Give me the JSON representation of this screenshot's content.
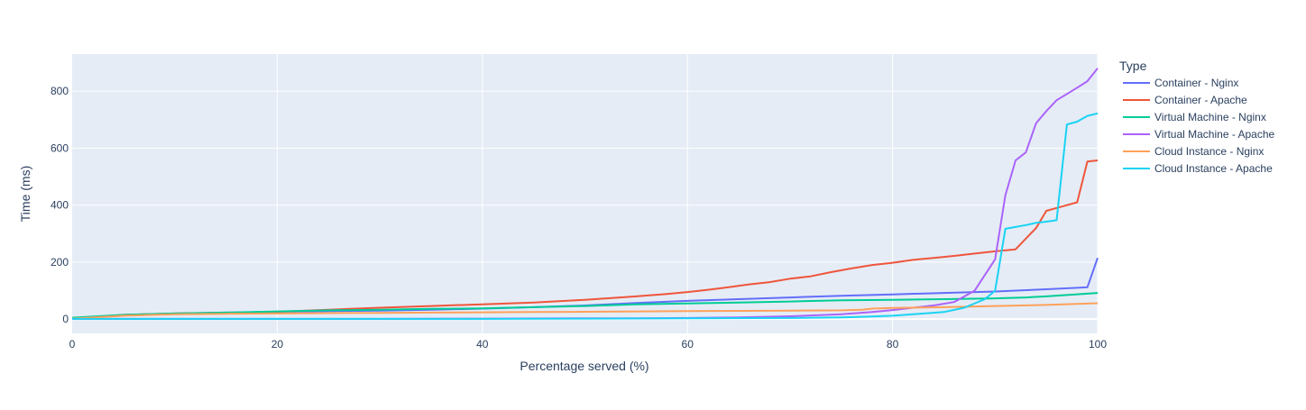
{
  "chart_data": {
    "type": "line",
    "xlabel": "Percentage served (%)",
    "ylabel": "Time (ms)",
    "xlim": [
      0,
      100
    ],
    "ylim": [
      -50,
      930
    ],
    "xticks": [
      0,
      20,
      40,
      60,
      80,
      100
    ],
    "yticks": [
      0,
      200,
      400,
      600,
      800
    ],
    "grid": true,
    "legend_placement": "right",
    "legend_title": "Type",
    "background": "#E5ECF6",
    "series": [
      {
        "name": "Container - Nginx",
        "color": "#636EFA",
        "x": [
          0,
          5,
          10,
          15,
          20,
          25,
          30,
          35,
          40,
          45,
          50,
          55,
          60,
          65,
          70,
          75,
          80,
          85,
          90,
          95,
          98,
          99,
          100
        ],
        "y": [
          3,
          13,
          20,
          23,
          26,
          28,
          30,
          33,
          37,
          42,
          48,
          57,
          64,
          70,
          76,
          82,
          87,
          92,
          97,
          105,
          110,
          112,
          215
        ]
      },
      {
        "name": "Container - Apache",
        "color": "#EF553B",
        "x": [
          0,
          5,
          10,
          15,
          20,
          25,
          30,
          35,
          40,
          45,
          50,
          55,
          58,
          60,
          62,
          64,
          66,
          68,
          70,
          72,
          74,
          76,
          78,
          80,
          82,
          84,
          86,
          88,
          90,
          92,
          94,
          95,
          96,
          97,
          98,
          99,
          100
        ],
        "y": [
          2,
          15,
          20,
          22,
          26,
          33,
          40,
          46,
          52,
          58,
          68,
          80,
          88,
          95,
          103,
          112,
          122,
          130,
          142,
          150,
          165,
          178,
          190,
          198,
          208,
          215,
          222,
          230,
          238,
          245,
          320,
          380,
          390,
          400,
          410,
          553,
          557
        ]
      },
      {
        "name": "Virtual Machine - Nginx",
        "color": "#00CC96",
        "x": [
          0,
          5,
          10,
          15,
          20,
          25,
          30,
          35,
          40,
          45,
          50,
          55,
          60,
          65,
          70,
          75,
          80,
          85,
          90,
          93,
          95,
          100
        ],
        "y": [
          5,
          15,
          20,
          23,
          27,
          31,
          33,
          36,
          38,
          42,
          46,
          52,
          55,
          58,
          62,
          66,
          68,
          70,
          73,
          76,
          80,
          92
        ]
      },
      {
        "name": "Virtual Machine - Apache",
        "color": "#AB63FA",
        "x": [
          0,
          10,
          20,
          30,
          40,
          50,
          55,
          60,
          65,
          70,
          75,
          78,
          80,
          82,
          84,
          86,
          88,
          90,
          91,
          92,
          93,
          94,
          95,
          96,
          97,
          98,
          99,
          100
        ],
        "y": [
          1,
          1,
          1,
          1,
          2,
          3,
          3,
          4,
          6,
          10,
          17,
          25,
          32,
          40,
          48,
          60,
          100,
          210,
          435,
          557,
          585,
          688,
          730,
          768,
          790,
          812,
          835,
          880
        ]
      },
      {
        "name": "Cloud Instance - Nginx",
        "color": "#FFA15A",
        "x": [
          0,
          5,
          10,
          15,
          20,
          25,
          30,
          35,
          40,
          45,
          50,
          55,
          60,
          65,
          70,
          75,
          77,
          78,
          80,
          85,
          90,
          95,
          100
        ],
        "y": [
          2,
          12,
          17,
          19,
          20,
          21,
          22,
          23,
          24,
          25,
          26,
          27,
          28,
          29,
          30,
          31,
          33,
          37,
          39,
          42,
          46,
          50,
          56
        ]
      },
      {
        "name": "Cloud Instance - Apache",
        "color": "#19D3F3",
        "x": [
          0,
          10,
          20,
          30,
          40,
          50,
          60,
          70,
          75,
          78,
          80,
          85,
          87,
          89,
          90,
          91,
          93,
          94,
          95,
          96,
          97,
          98,
          99,
          100
        ],
        "y": [
          1,
          1,
          1,
          1,
          1,
          2,
          3,
          4,
          6,
          9,
          12,
          25,
          40,
          70,
          100,
          317,
          330,
          338,
          342,
          347,
          683,
          693,
          713,
          722
        ]
      }
    ]
  }
}
